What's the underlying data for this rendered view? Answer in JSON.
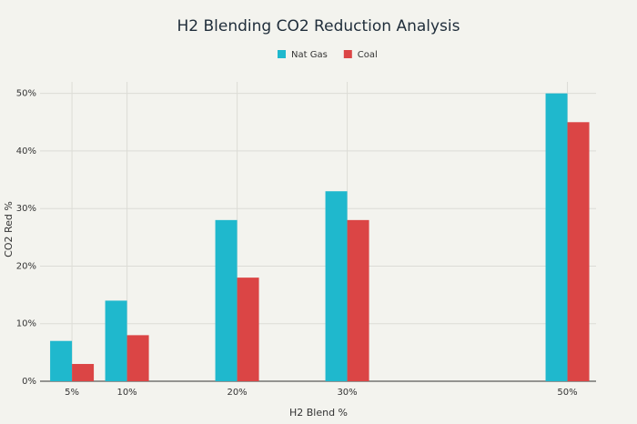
{
  "chart_data": {
    "type": "bar",
    "title": "H2 Blending CO2 Reduction Analysis",
    "x": [
      5,
      10,
      20,
      30,
      50
    ],
    "series": [
      {
        "name": "Nat Gas",
        "color": "#1fb8cd",
        "values": [
          7,
          14,
          28,
          33,
          50
        ]
      },
      {
        "name": "Coal",
        "color": "#db4545",
        "values": [
          3,
          8,
          18,
          28,
          45
        ]
      }
    ],
    "x_label": "H2 Blend %",
    "y_label": "CO2 Red %",
    "xlim": [
      2.1,
      52.6
    ],
    "xticks": [
      {
        "value": 5,
        "label": "5%"
      },
      {
        "value": 10,
        "label": "10%"
      },
      {
        "value": 20,
        "label": "20%"
      },
      {
        "value": 30,
        "label": "30%"
      },
      {
        "value": 50,
        "label": "50%"
      }
    ],
    "ylim": [
      0,
      52
    ],
    "yticks": [
      {
        "value": 0,
        "label": "0%"
      },
      {
        "value": 10,
        "label": "10%"
      },
      {
        "value": 20,
        "label": "20%"
      },
      {
        "value": 30,
        "label": "30%"
      },
      {
        "value": 40,
        "label": "40%"
      },
      {
        "value": 50,
        "label": "50%"
      }
    ],
    "grid": true,
    "legend": "top"
  }
}
